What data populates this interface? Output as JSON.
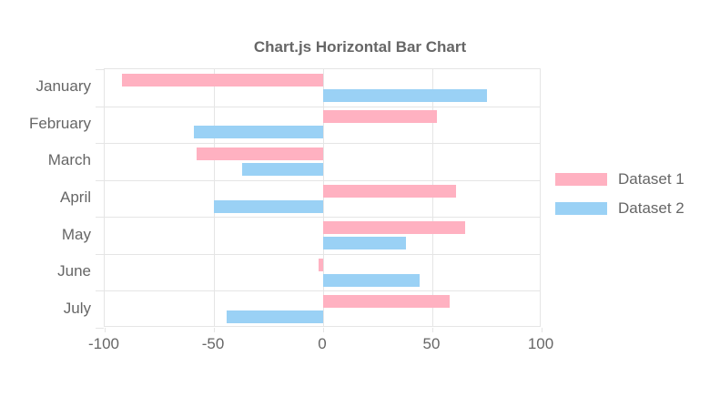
{
  "chart_data": {
    "type": "bar",
    "orientation": "horizontal",
    "title": "Chart.js Horizontal Bar Chart",
    "categories": [
      "January",
      "February",
      "March",
      "April",
      "May",
      "June",
      "July"
    ],
    "series": [
      {
        "name": "Dataset 1",
        "color": "#ffb1c1",
        "values": [
          -92,
          52,
          -58,
          61,
          65,
          -2,
          58
        ]
      },
      {
        "name": "Dataset 2",
        "color": "#9ad1f5",
        "values": [
          75,
          -59,
          -37,
          -50,
          38,
          44,
          -44
        ]
      }
    ],
    "xlim": [
      -100,
      100
    ],
    "xticks": [
      -100,
      -50,
      0,
      50,
      100
    ],
    "xtick_labels": [
      "-100",
      "-50",
      "0",
      "50",
      "100"
    ],
    "grid": true,
    "legend_position": "right",
    "colors": {
      "text": "#666666",
      "grid": "#e5e5e5",
      "background": "#ffffff",
      "dataset1_fill": "#ffb1c1",
      "dataset2_fill": "#9ad1f5"
    }
  }
}
